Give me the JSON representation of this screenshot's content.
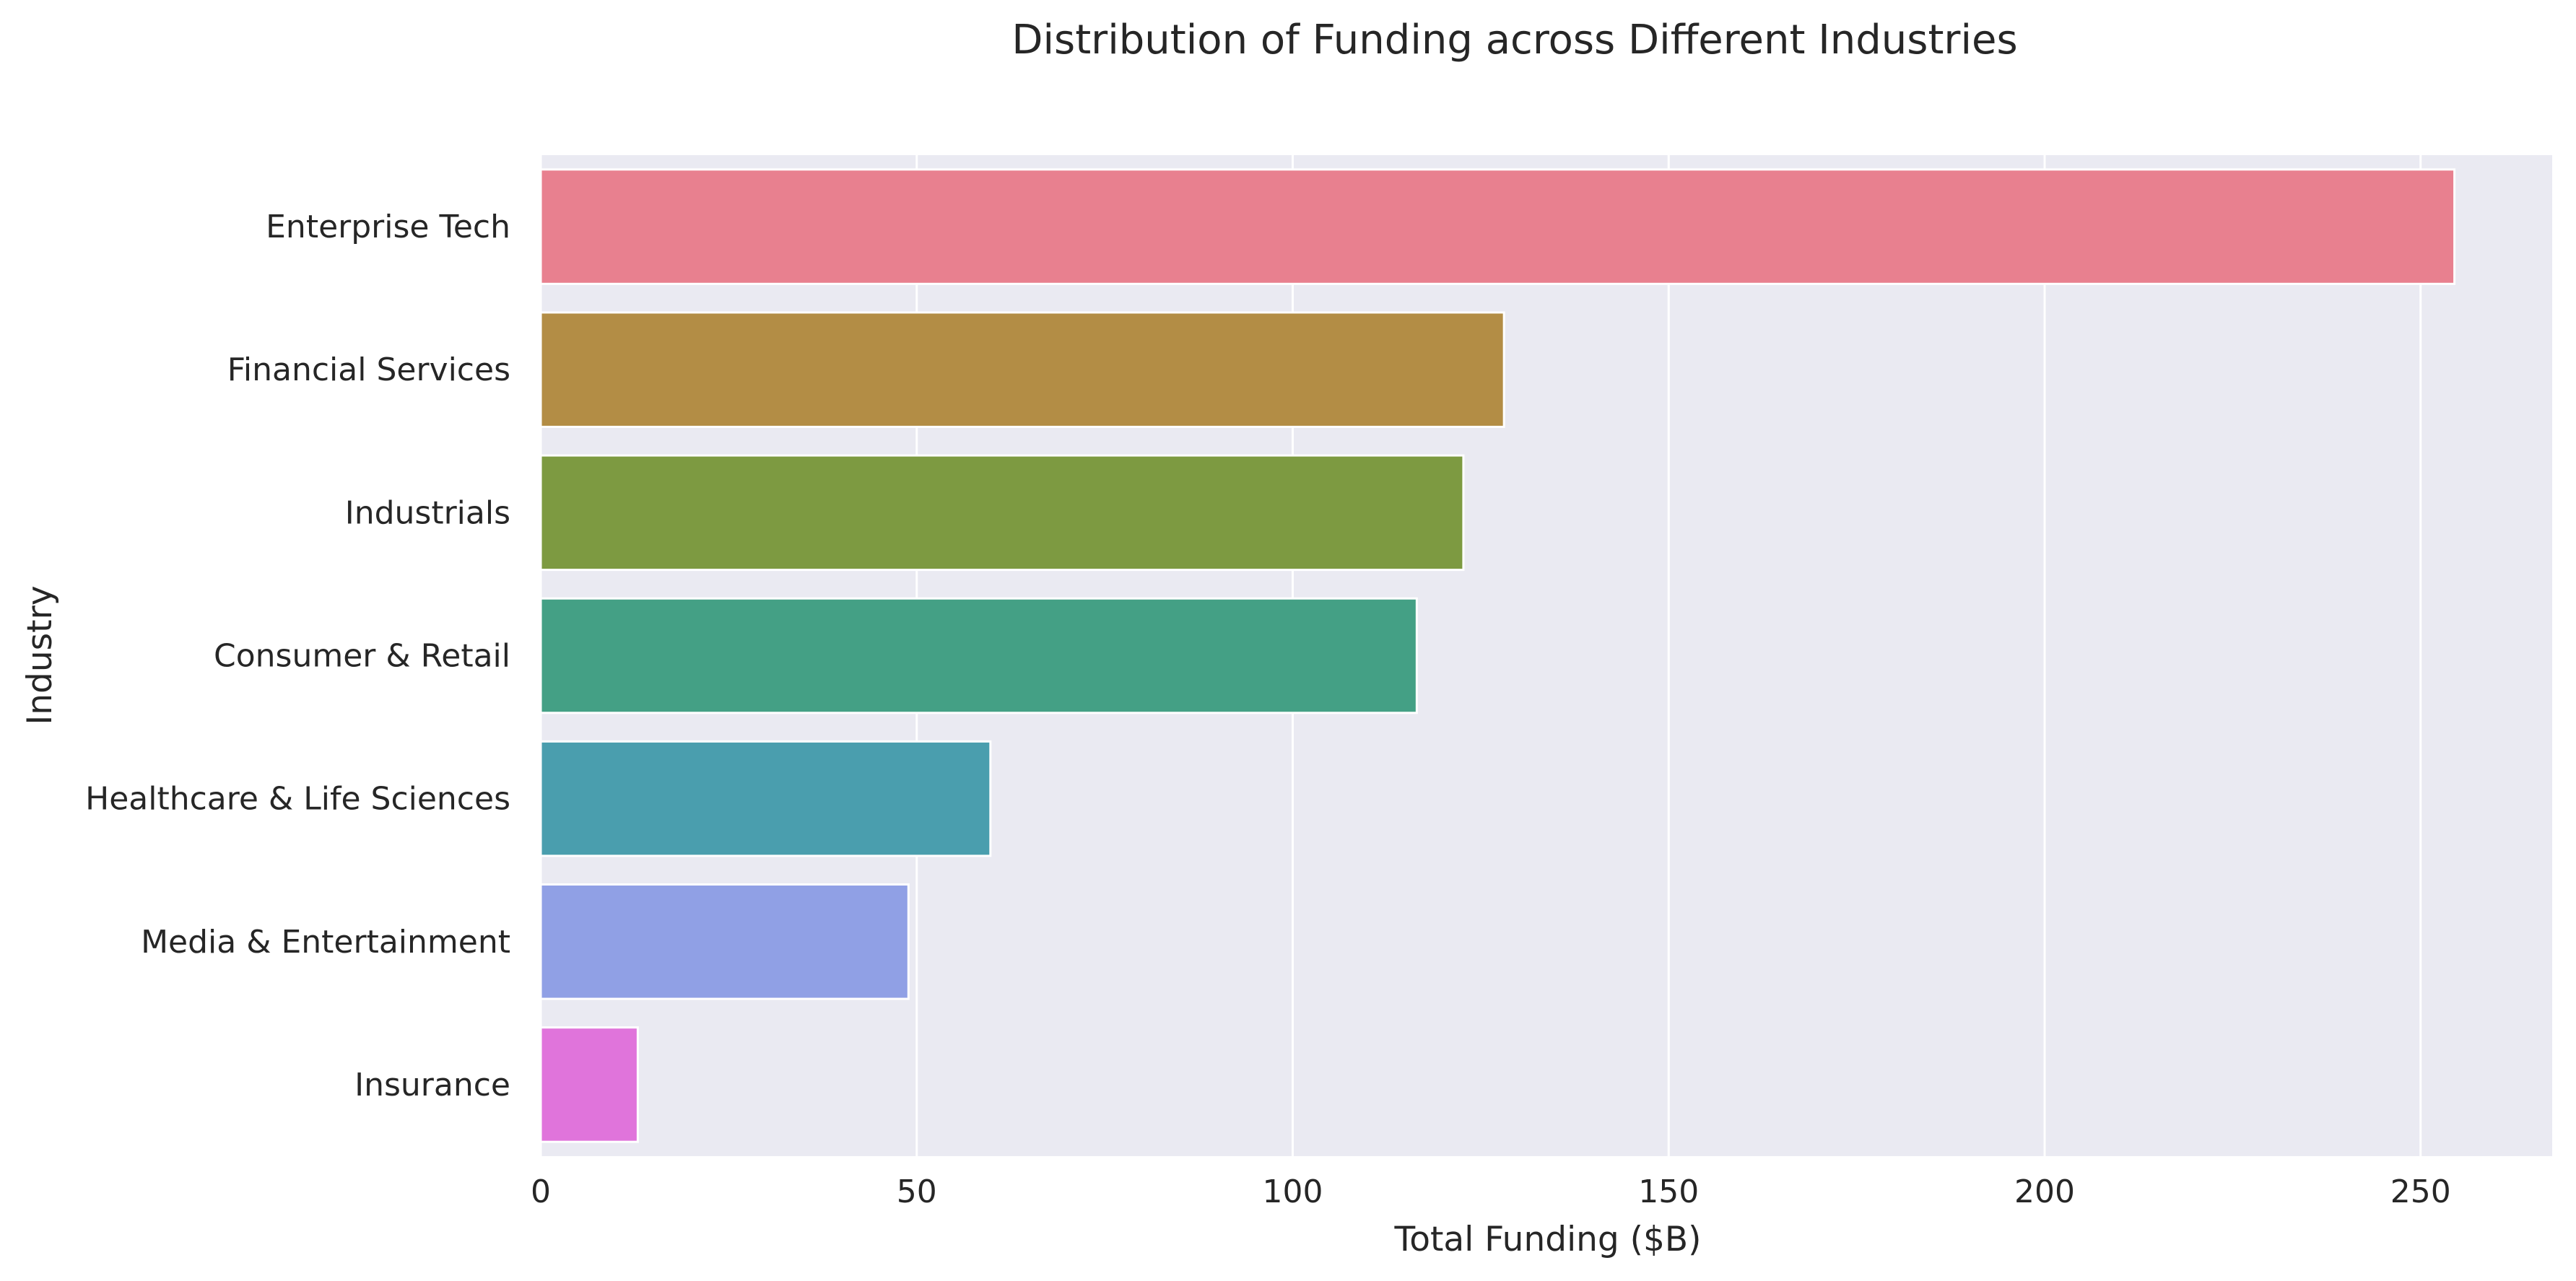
{
  "chart_data": {
    "type": "bar",
    "orientation": "horizontal",
    "title": "Distribution of Funding across Different Industries",
    "xlabel": "Total Funding ($B)",
    "ylabel": "Industry",
    "xlim": [
      0,
      267.5
    ],
    "xticks": [
      0,
      50,
      100,
      150,
      200,
      250
    ],
    "grid": true,
    "categories": [
      "Enterprise Tech",
      "Financial Services",
      "Industrials",
      "Consumer & Retail",
      "Healthcare & Life Sciences",
      "Media & Entertainment",
      "Insurance"
    ],
    "values": [
      254.5,
      128.1,
      122.7,
      116.5,
      59.8,
      48.9,
      12.9
    ],
    "colors": [
      "#e8808f",
      "#b38d45",
      "#7d9a41",
      "#44a085",
      "#4a9eae",
      "#90a0e5",
      "#e074db"
    ],
    "background_color": "#eaeaf2",
    "grid_color": "#ffffff"
  }
}
